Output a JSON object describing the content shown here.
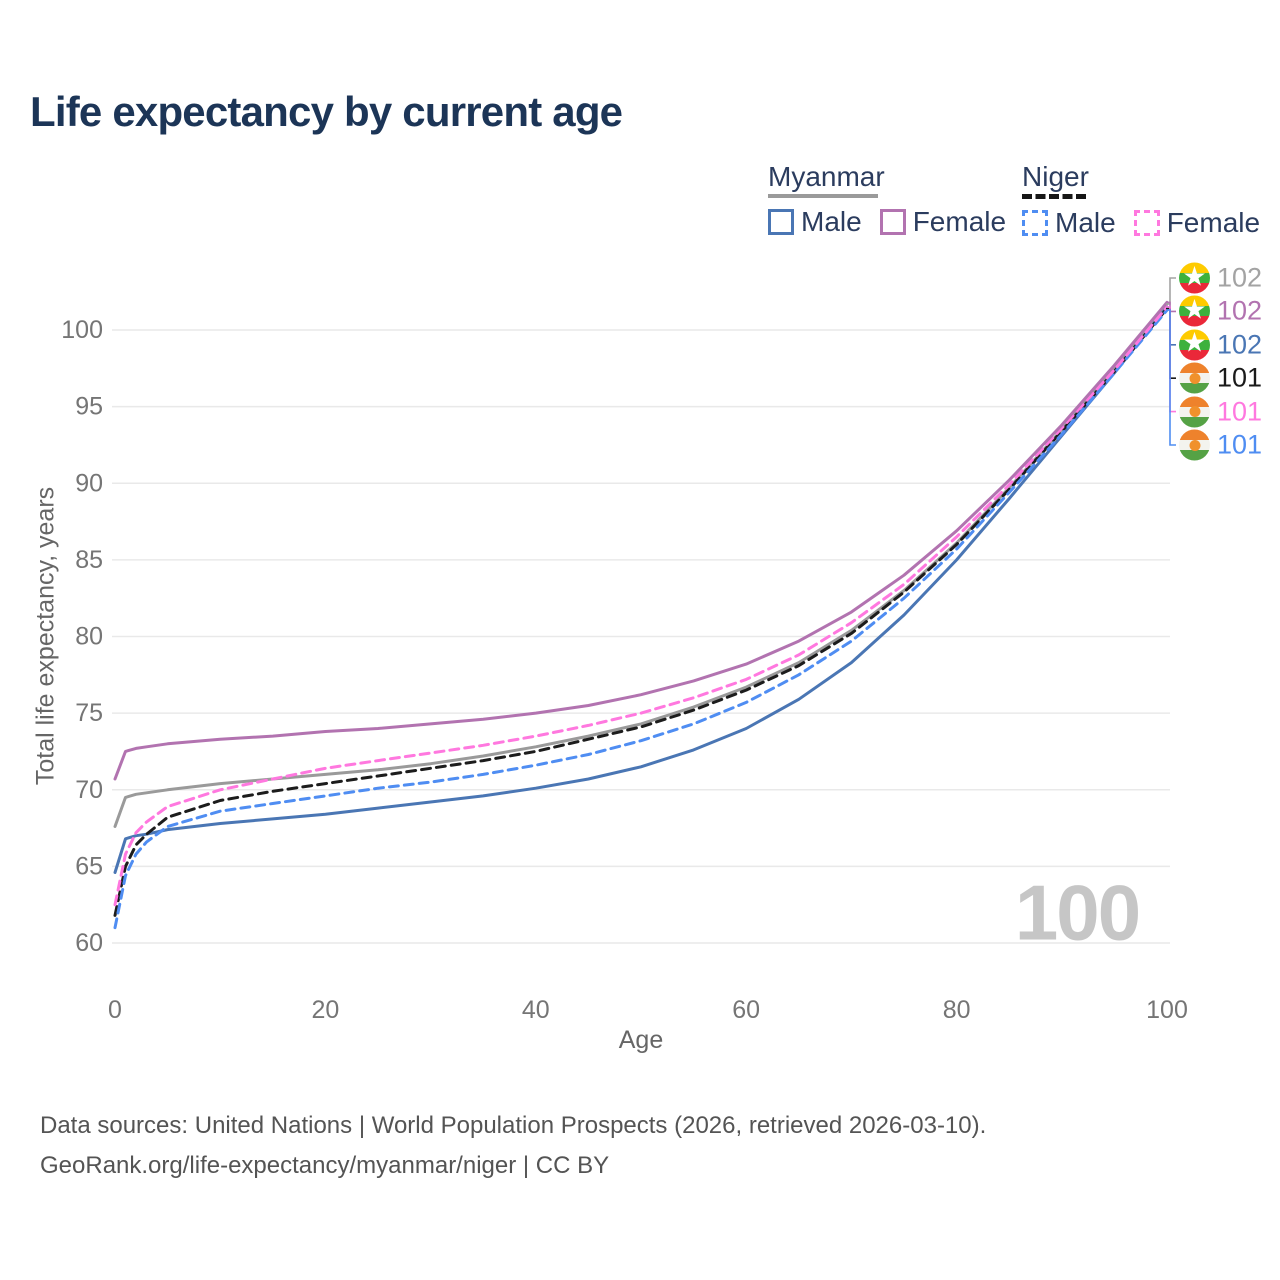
{
  "title": "Life expectancy by current age",
  "watermark": "100",
  "legend": {
    "myanmar": {
      "header": "Myanmar",
      "male": "Male",
      "female": "Female"
    },
    "niger": {
      "header": "Niger",
      "male": "Male",
      "female": "Female"
    }
  },
  "axes": {
    "y_title": "Total life expectancy, years",
    "x_title": "Age",
    "y_ticks": [
      60,
      65,
      70,
      75,
      80,
      85,
      90,
      95,
      100
    ],
    "x_ticks": [
      0,
      20,
      40,
      60,
      80,
      100
    ]
  },
  "footer": {
    "line1": "Data sources: United Nations | World Population Prospects (2026, retrieved 2026-03-10).",
    "line2": "GeoRank.org/life-expectancy/myanmar/niger | CC BY"
  },
  "colors": {
    "title_text": "#1c3557",
    "legend_text": "#2b3c5e",
    "grid": "#e9e9e9",
    "tick_text": "#757575",
    "axis_title_text": "#666666",
    "watermark_text": "#c6c6c6",
    "myanmar_total": "#9a9a9a",
    "myanmar_male": "#4a76b4",
    "myanmar_female": "#b273b0",
    "niger_total": "#1c1c1c",
    "niger_male": "#4f8df2",
    "niger_female": "#ff78df",
    "flag_myanmar": [
      "#fecb00",
      "#3db13d",
      "#ea2839",
      "#ffffff"
    ],
    "flag_niger": [
      "#ee822c",
      "#f3f3ee",
      "#55a245",
      "#f0912c"
    ]
  },
  "end_labels": [
    {
      "flag": "myanmar",
      "series": "myanmar-total",
      "value": "102",
      "color": "#a3a3a3"
    },
    {
      "flag": "myanmar",
      "series": "myanmar-female",
      "value": "102",
      "color": "#b273b0"
    },
    {
      "flag": "myanmar",
      "series": "myanmar-male",
      "value": "102",
      "color": "#4a76b4"
    },
    {
      "flag": "niger",
      "series": "niger-total",
      "value": "101",
      "color": "#1a1a1a"
    },
    {
      "flag": "niger",
      "series": "niger-female",
      "value": "101",
      "color": "#ff78df"
    },
    {
      "flag": "niger",
      "series": "niger-male",
      "value": "101",
      "color": "#4f8df2"
    }
  ],
  "chart_data": {
    "type": "line",
    "title": "Life expectancy by current age",
    "xlabel": "Age",
    "ylabel": "Total life expectancy, years",
    "xlim": [
      0,
      100
    ],
    "ylim": [
      60,
      100
    ],
    "grid": "horizontal-only",
    "legend_position": "top-right",
    "x": [
      0,
      1,
      2,
      3,
      5,
      10,
      15,
      20,
      25,
      30,
      35,
      40,
      45,
      50,
      55,
      60,
      65,
      70,
      75,
      80,
      85,
      90,
      95,
      100
    ],
    "series": [
      {
        "key": "myanmar-total",
        "name": "Myanmar Total",
        "color": "#9a9a9a",
        "dash": false,
        "values": [
          67.6,
          69.5,
          69.7,
          69.8,
          70.0,
          70.4,
          70.7,
          71.0,
          71.3,
          71.7,
          72.2,
          72.8,
          73.5,
          74.3,
          75.4,
          76.7,
          78.3,
          80.4,
          83.0,
          86.1,
          89.7,
          93.5,
          97.5,
          101.7
        ]
      },
      {
        "key": "myanmar-male",
        "name": "Myanmar Male",
        "color": "#4a76b4",
        "dash": false,
        "values": [
          64.6,
          66.8,
          67.0,
          67.1,
          67.4,
          67.8,
          68.1,
          68.4,
          68.8,
          69.2,
          69.6,
          70.1,
          70.7,
          71.5,
          72.6,
          74.0,
          75.9,
          78.3,
          81.4,
          85.0,
          89.0,
          93.1,
          97.2,
          101.5
        ]
      },
      {
        "key": "niger-total",
        "name": "Niger Total",
        "color": "#1c1c1c",
        "dash": true,
        "values": [
          61.8,
          65.0,
          66.4,
          67.1,
          68.2,
          69.3,
          69.9,
          70.4,
          70.9,
          71.4,
          71.9,
          72.5,
          73.3,
          74.1,
          75.2,
          76.5,
          78.1,
          80.2,
          82.9,
          86.0,
          89.6,
          93.4,
          97.3,
          101.4
        ]
      },
      {
        "key": "niger-male",
        "name": "Niger Male",
        "color": "#4f8df2",
        "dash": true,
        "values": [
          61.0,
          64.4,
          65.8,
          66.6,
          67.6,
          68.6,
          69.1,
          69.6,
          70.1,
          70.5,
          71.0,
          71.6,
          72.3,
          73.2,
          74.3,
          75.7,
          77.5,
          79.7,
          82.5,
          85.7,
          89.4,
          93.2,
          97.2,
          101.3
        ]
      },
      {
        "key": "niger-female",
        "name": "Niger Female",
        "color": "#ff78df",
        "dash": true,
        "values": [
          62.5,
          65.8,
          67.2,
          67.9,
          68.9,
          70.0,
          70.7,
          71.4,
          71.9,
          72.4,
          72.9,
          73.5,
          74.2,
          75.0,
          76.0,
          77.2,
          78.8,
          80.9,
          83.4,
          86.5,
          89.9,
          93.6,
          97.4,
          101.5
        ]
      },
      {
        "key": "myanmar-female",
        "name": "Myanmar Female",
        "color": "#b273b0",
        "dash": false,
        "values": [
          70.7,
          72.5,
          72.7,
          72.8,
          73.0,
          73.3,
          73.5,
          73.8,
          74.0,
          74.3,
          74.6,
          75.0,
          75.5,
          76.2,
          77.1,
          78.2,
          79.7,
          81.6,
          84.0,
          86.9,
          90.2,
          93.8,
          97.7,
          101.8
        ]
      }
    ]
  }
}
